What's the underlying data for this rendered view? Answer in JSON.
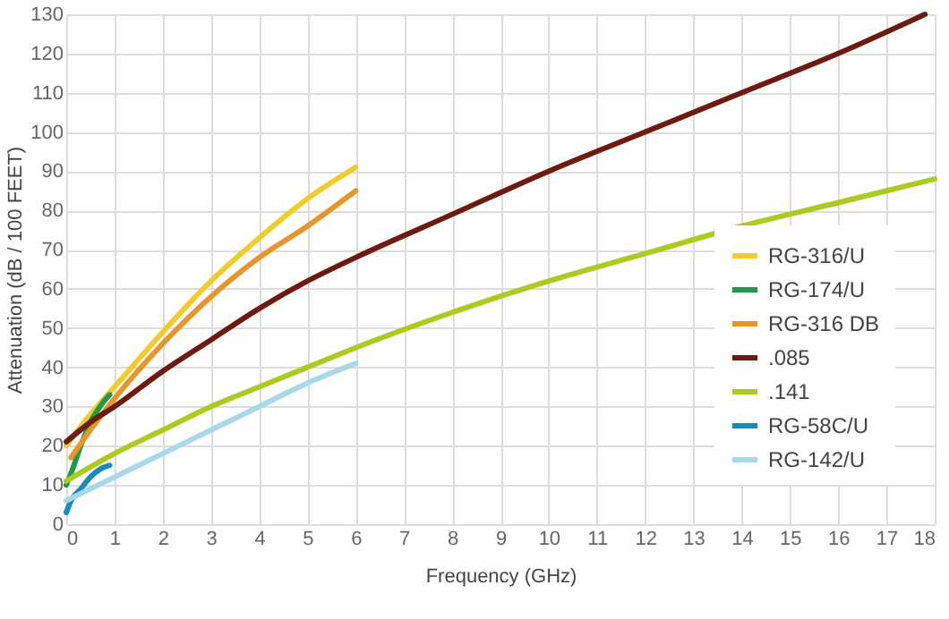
{
  "chart_data": {
    "type": "line",
    "xlabel": "Frequency (GHz)",
    "ylabel": "Attenuation (dB / 100 FEET)",
    "xlim": [
      0,
      18
    ],
    "xticks": [
      0,
      1,
      2,
      3,
      4,
      5,
      6,
      7,
      8,
      9,
      10,
      11,
      12,
      13,
      14,
      15,
      16,
      17,
      18
    ],
    "ylim": [
      0,
      130
    ],
    "yticks": [
      0,
      10,
      20,
      30,
      40,
      50,
      60,
      70,
      80,
      90,
      100,
      110,
      120,
      130
    ],
    "grid": true,
    "legend": "bottom right",
    "series": [
      {
        "name": "RG-316/U",
        "color": "#f2cc2a",
        "x": [
          0,
          0.5,
          1,
          2,
          3,
          4,
          5,
          6
        ],
        "values": [
          20,
          28,
          35,
          49,
          62,
          73,
          83,
          91
        ]
      },
      {
        "name": "RG-174/U",
        "color": "#1e9a4a",
        "x": [
          0,
          0.1,
          0.3,
          0.5,
          0.7,
          0.9
        ],
        "values": [
          10,
          13,
          20,
          26,
          30,
          33
        ]
      },
      {
        "name": "RG-316 DB",
        "color": "#e8952a",
        "x": [
          0.1,
          0.5,
          1,
          2,
          3,
          4,
          5,
          6
        ],
        "values": [
          17,
          24,
          32,
          46,
          58,
          68,
          76,
          85
        ]
      },
      {
        "name": ".085",
        "color": "#6e1a0e",
        "x": [
          0,
          0.5,
          1,
          2,
          3,
          4,
          5,
          6,
          8,
          10,
          12,
          14,
          16,
          17.8
        ],
        "values": [
          21,
          26,
          30,
          39,
          47,
          55,
          62,
          68,
          79,
          90,
          100,
          110,
          120,
          130
        ]
      },
      {
        "name": ".141",
        "color": "#a9cc1e",
        "x": [
          0,
          1,
          2,
          3,
          4,
          5,
          6,
          8,
          10,
          12,
          14,
          16,
          18
        ],
        "values": [
          11,
          18,
          24,
          30,
          35,
          40,
          45,
          54,
          62,
          69,
          76,
          82,
          88
        ]
      },
      {
        "name": "RG-58C/U",
        "color": "#1a8ab8",
        "x": [
          0,
          0.1,
          0.3,
          0.5,
          0.7,
          0.9
        ],
        "values": [
          3,
          6,
          9,
          12,
          14,
          15
        ]
      },
      {
        "name": "RG-142/U",
        "color": "#a8d8ea",
        "x": [
          0,
          0.5,
          1,
          2,
          3,
          4,
          5,
          6
        ],
        "values": [
          6,
          9,
          12,
          18,
          24,
          30,
          36,
          41
        ]
      }
    ]
  }
}
